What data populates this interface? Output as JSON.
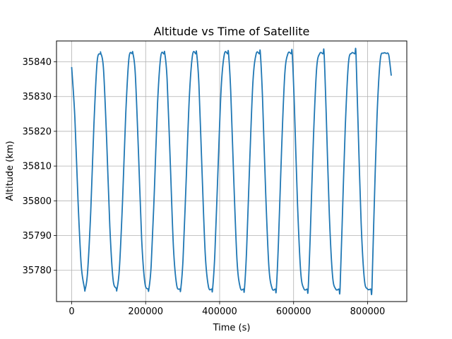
{
  "chart_data": {
    "type": "line",
    "title": "Altitude vs Time of Satellite",
    "xlabel": "Time (s)",
    "ylabel": "Altitude (km)",
    "xlim": [
      -41000,
      906000
    ],
    "ylim": [
      35771,
      35846
    ],
    "x_ticks": [
      0,
      200000,
      400000,
      600000,
      800000
    ],
    "x_tick_labels": [
      "0",
      "200000",
      "400000",
      "600000",
      "800000"
    ],
    "y_ticks": [
      35780,
      35790,
      35800,
      35810,
      35820,
      35830,
      35840
    ],
    "y_tick_labels": [
      "35780",
      "35790",
      "35800",
      "35810",
      "35820",
      "35830",
      "35840"
    ],
    "grid": true,
    "legend": "none",
    "series_color": "#1f77b4",
    "series": [
      {
        "x": [
          0,
          8600,
          17200,
          25800,
          34400,
          36500,
          43000,
          51600,
          60200,
          68800,
          77400,
          78600,
          86000,
          94600,
          103200,
          111800,
          120400,
          122400,
          129000,
          137600,
          146200,
          154800,
          163400,
          165500,
          172000,
          180600,
          189200,
          197800,
          206400,
          208600,
          215000,
          223600,
          232200,
          240800,
          249400,
          251600,
          258000,
          266600,
          275200,
          283800,
          292400,
          294800,
          301000,
          309600,
          318200,
          326800,
          335400,
          337800,
          344000,
          352600,
          361200,
          369800,
          378400,
          380900,
          387000,
          395600,
          404200,
          412800,
          421400,
          424000,
          430000,
          438600,
          447200,
          455800,
          464400,
          467000,
          473000,
          481600,
          490200,
          498800,
          507400,
          510100,
          516000,
          524600,
          533200,
          541800,
          550400,
          553200,
          559000,
          567600,
          576200,
          584800,
          593400,
          596200,
          602000,
          610600,
          619200,
          627800,
          636400,
          639300,
          645000,
          653600,
          662200,
          670800,
          679400,
          682400,
          688000,
          696600,
          705200,
          713800,
          722400,
          725500,
          731000,
          739600,
          748200,
          756800,
          765400,
          768600,
          774000,
          782600,
          791200,
          799800,
          808400,
          811700,
          817000,
          825600,
          834200,
          842800,
          851400,
          854800,
          858000,
          864000
        ],
        "y": [
          35838.5,
          35824.0,
          35800.0,
          35781.5,
          35775.0,
          35774.5,
          35779.5,
          35797.0,
          35822.0,
          35840.0,
          35842.3,
          35842.5,
          35838.0,
          35817.5,
          35792.5,
          35777.5,
          35774.8,
          35774.5,
          35780.5,
          35800.0,
          35825.0,
          35841.0,
          35842.4,
          35842.5,
          35836.5,
          35814.0,
          35789.0,
          35776.5,
          35774.6,
          35774.5,
          35781.5,
          35803.0,
          35828.0,
          35841.5,
          35842.3,
          35842.5,
          35835.0,
          35811.0,
          35786.5,
          35775.8,
          35774.6,
          35774.5,
          35783.0,
          35806.0,
          35830.0,
          35842.0,
          35842.3,
          35842.5,
          35833.5,
          35808.0,
          35784.5,
          35775.3,
          35774.6,
          35774.5,
          35784.5,
          35809.0,
          35832.5,
          35842.2,
          35842.3,
          35842.5,
          35831.5,
          35805.0,
          35782.5,
          35775.0,
          35774.6,
          35774.5,
          35786.0,
          35812.0,
          35834.5,
          35842.3,
          35842.3,
          35842.5,
          35829.5,
          35802.0,
          35781.0,
          35774.8,
          35774.6,
          35774.5,
          35788.0,
          35815.0,
          35836.5,
          35842.4,
          35842.3,
          35842.5,
          35827.5,
          35799.0,
          35779.5,
          35774.7,
          35774.6,
          35774.5,
          35790.0,
          35818.0,
          35838.0,
          35842.4,
          35842.3,
          35842.5,
          35825.5,
          35796.0,
          35778.5,
          35774.6,
          35774.6,
          35774.5,
          35792.5,
          35821.0,
          35839.5,
          35842.5,
          35842.3,
          35842.5,
          35823.0,
          35793.5,
          35777.5,
          35774.6,
          35774.6,
          35774.5,
          35795.0,
          35824.5,
          35840.5,
          35842.5,
          35842.4,
          35842.5,
          35841.5,
          35836.0
        ]
      }
    ]
  }
}
